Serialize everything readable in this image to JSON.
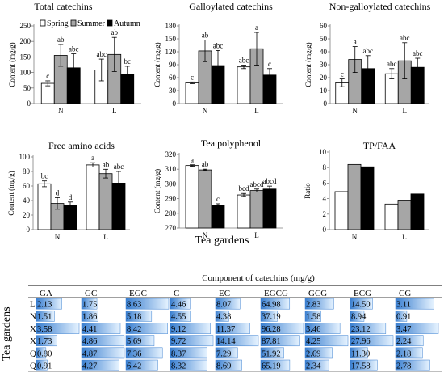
{
  "colors": {
    "spring": "#ffffff",
    "summer": "#a6a6a6",
    "autumn": "#000000",
    "table_bar_dark": "#3a7fd0",
    "table_bar_light": "#e6f3ff"
  },
  "x_axis_title": "Tea gardens",
  "chart_data": [
    {
      "type": "bar",
      "title": "Total catechins",
      "ylabel": "Content (mg/g)",
      "categories": [
        "N",
        "L"
      ],
      "ylim": [
        0,
        250
      ],
      "yticks": [
        0,
        50,
        100,
        150,
        200,
        250
      ],
      "legend": [
        "Spring",
        "Summer",
        "Autumn"
      ],
      "legend_position": "top",
      "series": [
        {
          "name": "Spring",
          "values": [
            65,
            108
          ],
          "errors": [
            8,
            35
          ],
          "labels": [
            "c",
            "abc"
          ]
        },
        {
          "name": "Summer",
          "values": [
            155,
            158
          ],
          "errors": [
            35,
            55
          ],
          "labels": [
            "ab",
            "ab"
          ]
        },
        {
          "name": "Autumn",
          "values": [
            115,
            95
          ],
          "errors": [
            45,
            25
          ],
          "labels": [
            "abc",
            "bc"
          ]
        }
      ]
    },
    {
      "type": "bar",
      "title": "Galloylated catechins",
      "ylabel": "Content (mg/g)",
      "categories": [
        "N",
        "L"
      ],
      "ylim": [
        0,
        180
      ],
      "yticks": [
        0,
        30,
        60,
        90,
        120,
        150,
        180
      ],
      "series": [
        {
          "name": "Spring",
          "values": [
            48,
            85
          ],
          "errors": [
            2,
            4
          ],
          "labels": [
            "c",
            "abc"
          ]
        },
        {
          "name": "Summer",
          "values": [
            122,
            127
          ],
          "errors": [
            25,
            38
          ],
          "labels": [
            "ab",
            "a"
          ]
        },
        {
          "name": "Autumn",
          "values": [
            88,
            66
          ],
          "errors": [
            35,
            15
          ],
          "labels": [
            "abc",
            "c"
          ]
        }
      ]
    },
    {
      "type": "bar",
      "title": "Non-galloylated catechins",
      "ylabel": "Content (mg/g)",
      "categories": [
        "N",
        "L"
      ],
      "ylim": [
        0,
        60
      ],
      "yticks": [
        0,
        10,
        20,
        30,
        40,
        50,
        60
      ],
      "series": [
        {
          "name": "Spring",
          "values": [
            16,
            23
          ],
          "errors": [
            3,
            4
          ],
          "labels": [
            "c",
            "abc"
          ]
        },
        {
          "name": "Summer",
          "values": [
            34,
            33
          ],
          "errors": [
            10,
            14
          ],
          "labels": [
            "a",
            "abc"
          ]
        },
        {
          "name": "Autumn",
          "values": [
            27,
            28
          ],
          "errors": [
            10,
            7
          ],
          "labels": [
            "abc",
            "abc"
          ]
        }
      ]
    },
    {
      "type": "bar",
      "title": "Free amino acids",
      "ylabel": "Content (mg/g)",
      "categories": [
        "N",
        "L"
      ],
      "ylim": [
        0,
        100
      ],
      "yticks": [
        0,
        20,
        40,
        60,
        80,
        100
      ],
      "series": [
        {
          "name": "Spring",
          "values": [
            63,
            89
          ],
          "errors": [
            4,
            3
          ],
          "labels": [
            "bc",
            "a"
          ]
        },
        {
          "name": "Summer",
          "values": [
            36,
            77
          ],
          "errors": [
            8,
            6
          ],
          "labels": [
            "d",
            "ab"
          ]
        },
        {
          "name": "Autumn",
          "values": [
            34,
            64
          ],
          "errors": [
            4,
            16
          ],
          "labels": [
            "d",
            "abc"
          ]
        }
      ]
    },
    {
      "type": "bar",
      "title": "Tea polyphenol",
      "ylabel": "Content (mg/g)",
      "categories": [
        "N",
        "L"
      ],
      "ylim": [
        270,
        320
      ],
      "yticks": [
        270,
        280,
        290,
        300,
        310,
        320
      ],
      "series": [
        {
          "name": "Spring",
          "values": [
            312.5,
            292.5
          ],
          "errors": [
            0.5,
            1
          ],
          "labels": [
            "a",
            "bcd"
          ]
        },
        {
          "name": "Summer",
          "values": [
            309.5,
            295.5
          ],
          "errors": [
            0.5,
            1
          ],
          "labels": [
            "ab",
            "abcd"
          ]
        },
        {
          "name": "Autumn",
          "values": [
            285.5,
            296.5
          ],
          "errors": [
            1,
            2
          ],
          "labels": [
            "c",
            "abcd"
          ]
        }
      ]
    },
    {
      "type": "bar",
      "title": "TP/FAA",
      "ylabel": "Ratio",
      "categories": [
        "N",
        "L"
      ],
      "ylim": [
        0,
        10
      ],
      "yticks": [
        0,
        2,
        4,
        6,
        8,
        10
      ],
      "series": [
        {
          "name": "Spring",
          "values": [
            4.9,
            3.3
          ],
          "errors": [],
          "labels": []
        },
        {
          "name": "Summer",
          "values": [
            8.4,
            3.8
          ],
          "errors": [],
          "labels": []
        },
        {
          "name": "Autumn",
          "values": [
            8.1,
            4.6
          ],
          "errors": [],
          "labels": []
        }
      ]
    },
    {
      "type": "table",
      "title": "Component of catechins (mg/g)",
      "row_axis_label": "Tea gardens",
      "columns": [
        "GA",
        "GC",
        "EGC",
        "C",
        "EC",
        "EGCG",
        "GCG",
        "ECG",
        "CG"
      ],
      "rows": [
        "L",
        "N",
        "XL",
        "XN",
        "QL",
        "QN"
      ],
      "values": [
        [
          2.13,
          1.75,
          8.63,
          4.46,
          8.07,
          64.98,
          2.83,
          14.5,
          3.11
        ],
        [
          1.51,
          1.86,
          5.18,
          4.55,
          4.38,
          37.19,
          1.58,
          8.94,
          0.91
        ],
        [
          3.58,
          4.41,
          8.42,
          9.12,
          11.37,
          96.28,
          3.46,
          23.12,
          3.47
        ],
        [
          1.73,
          4.86,
          5.69,
          9.72,
          14.14,
          87.81,
          4.25,
          27.96,
          2.24
        ],
        [
          0.8,
          4.87,
          7.36,
          8.37,
          7.29,
          51.92,
          2.69,
          11.3,
          2.18
        ],
        [
          0.91,
          4.27,
          6.42,
          8.32,
          8.69,
          65.19,
          2.34,
          17.58,
          2.78
        ]
      ],
      "display": [
        [
          "2.13",
          "1.75",
          "8.63",
          "4.46",
          "8.07",
          "64.98",
          "2.83",
          "14.50",
          "3.11"
        ],
        [
          "1.51",
          "1.86",
          "5.18",
          "4.55",
          "4.38",
          "37.19",
          "1.58",
          "8.94",
          "0.91"
        ],
        [
          "3.58",
          "4.41",
          "8.42",
          "9.12",
          "11.37",
          "96.28",
          "3.46",
          "23.12",
          "3.47"
        ],
        [
          "1.73",
          "4.86",
          "5.69",
          "9.72",
          "14.14",
          "87.81",
          "4.25",
          "27.96",
          "2.24"
        ],
        [
          "0.80",
          "4.87",
          "7.36",
          "8.37",
          "7.29",
          "51.92",
          "2.69",
          "11.30",
          "2.18"
        ],
        [
          "0.91",
          "4.27",
          "6.42",
          "8.32",
          "8.69",
          "65.19",
          "2.34",
          "17.58",
          "2.78"
        ]
      ]
    }
  ]
}
